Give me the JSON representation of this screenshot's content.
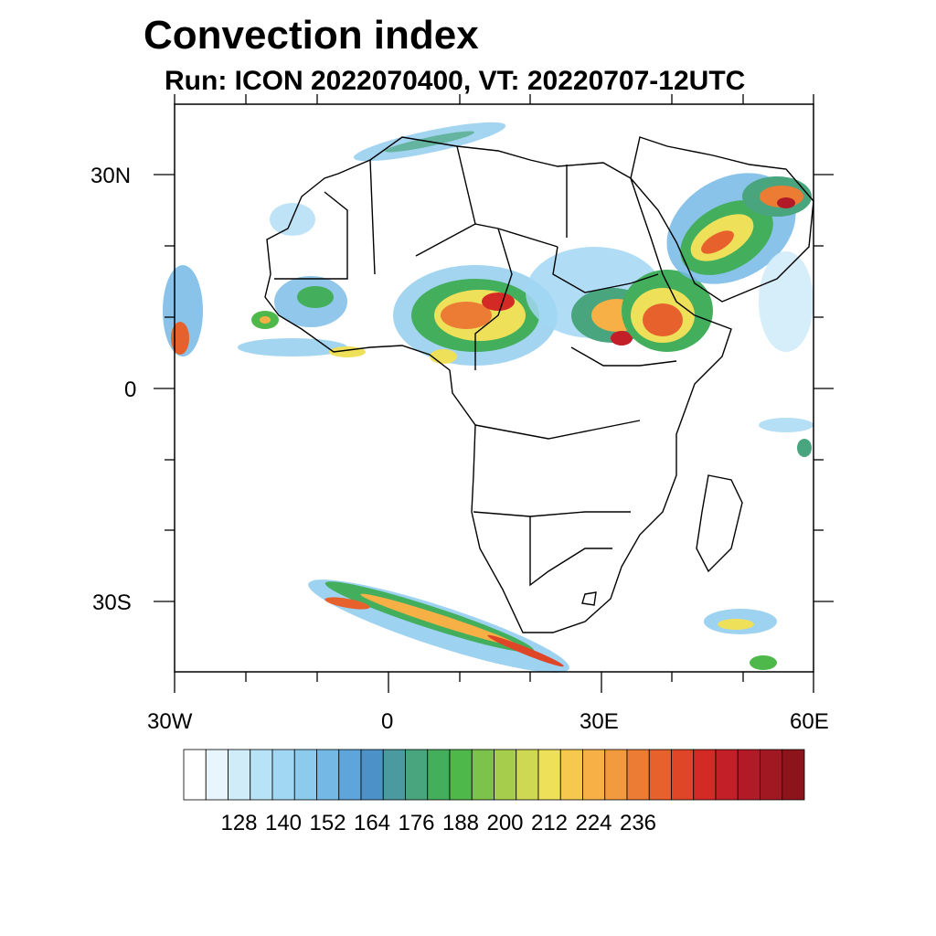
{
  "title": "Convection index",
  "subtitle": "Run: ICON 2022070400,  VT: 20220707-12UTC",
  "map": {
    "lat_labels": [
      "30N",
      "0",
      "30S"
    ],
    "lon_labels": [
      "30W",
      "0",
      "30E",
      "60E"
    ],
    "extent": {
      "lon_min": -30,
      "lon_max": 60,
      "lat_min": -40,
      "lat_max": 40
    },
    "coastline_color": "#000000"
  },
  "colorbar": {
    "tick_labels": [
      "128",
      "140",
      "152",
      "164",
      "176",
      "188",
      "200",
      "212",
      "224",
      "236"
    ],
    "colors": [
      "#ffffff",
      "#e8f5fc",
      "#d0ecf9",
      "#b8e2f6",
      "#a2d7f3",
      "#8ccaee",
      "#74b9e6",
      "#5ea5dc",
      "#4c92c8",
      "#4a9aa0",
      "#48a57e",
      "#43ae5c",
      "#4fb84a",
      "#7dc24a",
      "#a7cd4d",
      "#cfd853",
      "#efe05a",
      "#f6c84e",
      "#f6b046",
      "#f29a3e",
      "#ec7c33",
      "#e6612b",
      "#de4627",
      "#d32a26",
      "#c21f28",
      "#b11a26",
      "#a11722",
      "#8e141c"
    ]
  }
}
